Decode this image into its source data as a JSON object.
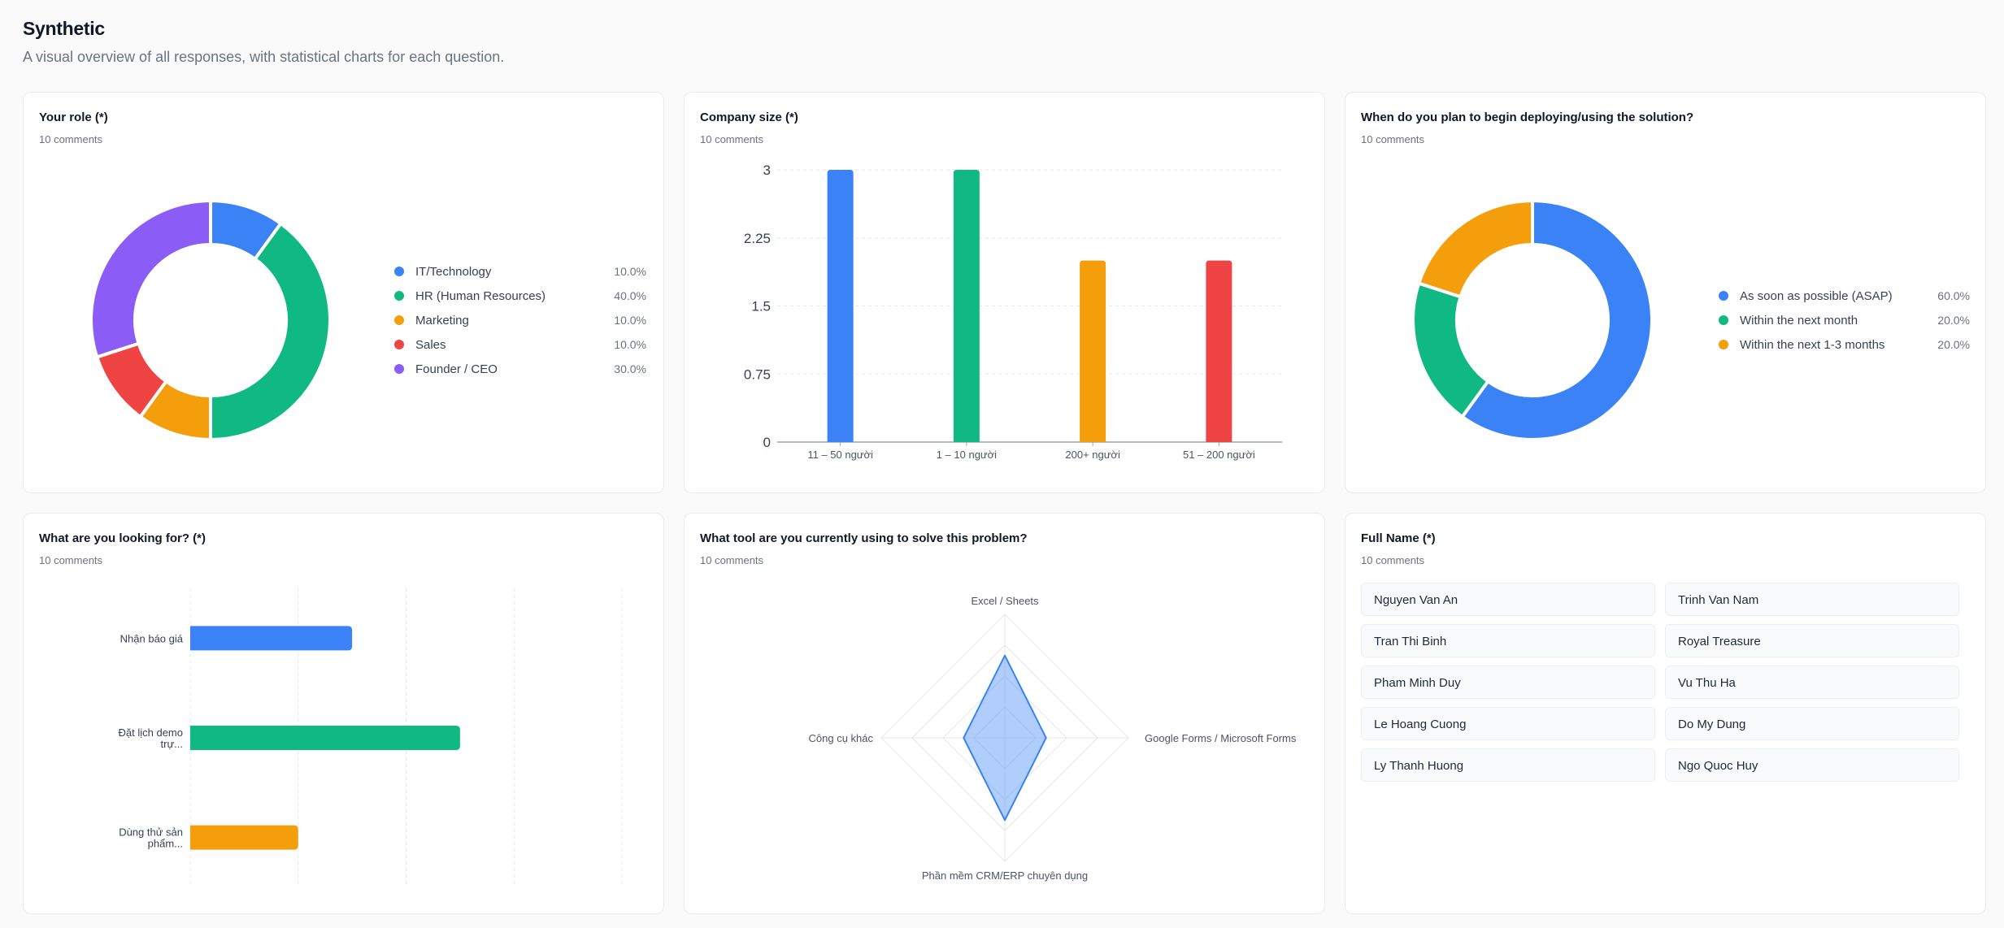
{
  "header": {
    "title": "Synthetic",
    "subtitle": "A visual overview of all responses, with statistical charts for each question."
  },
  "colors": {
    "blue": "#3b82f6",
    "green": "#10b981",
    "orange": "#f59e0b",
    "red": "#ef4444",
    "purple": "#8b5cf6"
  },
  "cards": {
    "role": {
      "title": "Your role (*)",
      "sub": "10 comments"
    },
    "company": {
      "title": "Company size (*)",
      "sub": "10 comments"
    },
    "deploy": {
      "title": "When do you plan to begin deploying/using the solution?",
      "sub": "10 comments"
    },
    "looking": {
      "title": "What are you looking for? (*)",
      "sub": "10 comments"
    },
    "tool": {
      "title": "What tool are you currently using to solve this problem?",
      "sub": "10 comments"
    },
    "names": {
      "title": "Full Name (*)",
      "sub": "10 comments",
      "items": [
        "Nguyen Van An",
        "Trinh Van Nam",
        "Tran Thi Binh",
        "Royal Treasure",
        "Pham Minh Duy",
        "Vu Thu Ha",
        "Le Hoang Cuong",
        "Do My Dung",
        "Ly Thanh Huong",
        "Ngo Quoc Huy"
      ]
    }
  },
  "chart_data": [
    {
      "type": "pie",
      "variant": "donut",
      "labels": [
        "IT/Technology",
        "HR (Human Resources)",
        "Marketing",
        "Sales",
        "Founder / CEO"
      ],
      "values": [
        10.0,
        40.0,
        10.0,
        10.0,
        30.0
      ],
      "pct_labels": [
        "10.0%",
        "40.0%",
        "10.0%",
        "10.0%",
        "30.0%"
      ],
      "colors": [
        "#3b82f6",
        "#10b981",
        "#f59e0b",
        "#ef4444",
        "#8b5cf6"
      ],
      "legend": "right"
    },
    {
      "type": "bar",
      "categories": [
        "11 – 50 người",
        "1 – 10 người",
        "200+ người",
        "51 – 200 người"
      ],
      "values": [
        3,
        3,
        2,
        2
      ],
      "ylim": [
        0,
        3
      ],
      "yticks": [
        "0",
        "0.75",
        "1.5",
        "2.25",
        "3"
      ],
      "colors": [
        "#3b82f6",
        "#10b981",
        "#f59e0b",
        "#ef4444"
      ],
      "grid": true
    },
    {
      "type": "pie",
      "variant": "donut",
      "labels": [
        "As soon as possible (ASAP)",
        "Within the next month",
        "Within the next 1-3 months"
      ],
      "values": [
        60.0,
        20.0,
        20.0
      ],
      "pct_labels": [
        "60.0%",
        "20.0%",
        "20.0%"
      ],
      "colors": [
        "#3b82f6",
        "#10b981",
        "#f59e0b"
      ],
      "legend": "right"
    },
    {
      "type": "bar",
      "orientation": "horizontal",
      "categories": [
        [
          "Nhận báo giá"
        ],
        [
          "Đặt lịch demo",
          "trự..."
        ],
        [
          "Dùng thử sản",
          "phẩm..."
        ]
      ],
      "values": [
        3,
        5,
        2
      ],
      "xlim": [
        0,
        8
      ],
      "colors": [
        "#3b82f6",
        "#10b981",
        "#f59e0b"
      ],
      "grid": true
    },
    {
      "type": "radar",
      "axes": [
        "Excel / Sheets",
        "Google Forms / Microsoft Forms",
        "Phần mềm CRM/ERP chuyên dụng",
        "Công cụ khác"
      ],
      "values": [
        4,
        2,
        4,
        2
      ],
      "max": 6,
      "color": "#3b82f6"
    }
  ]
}
